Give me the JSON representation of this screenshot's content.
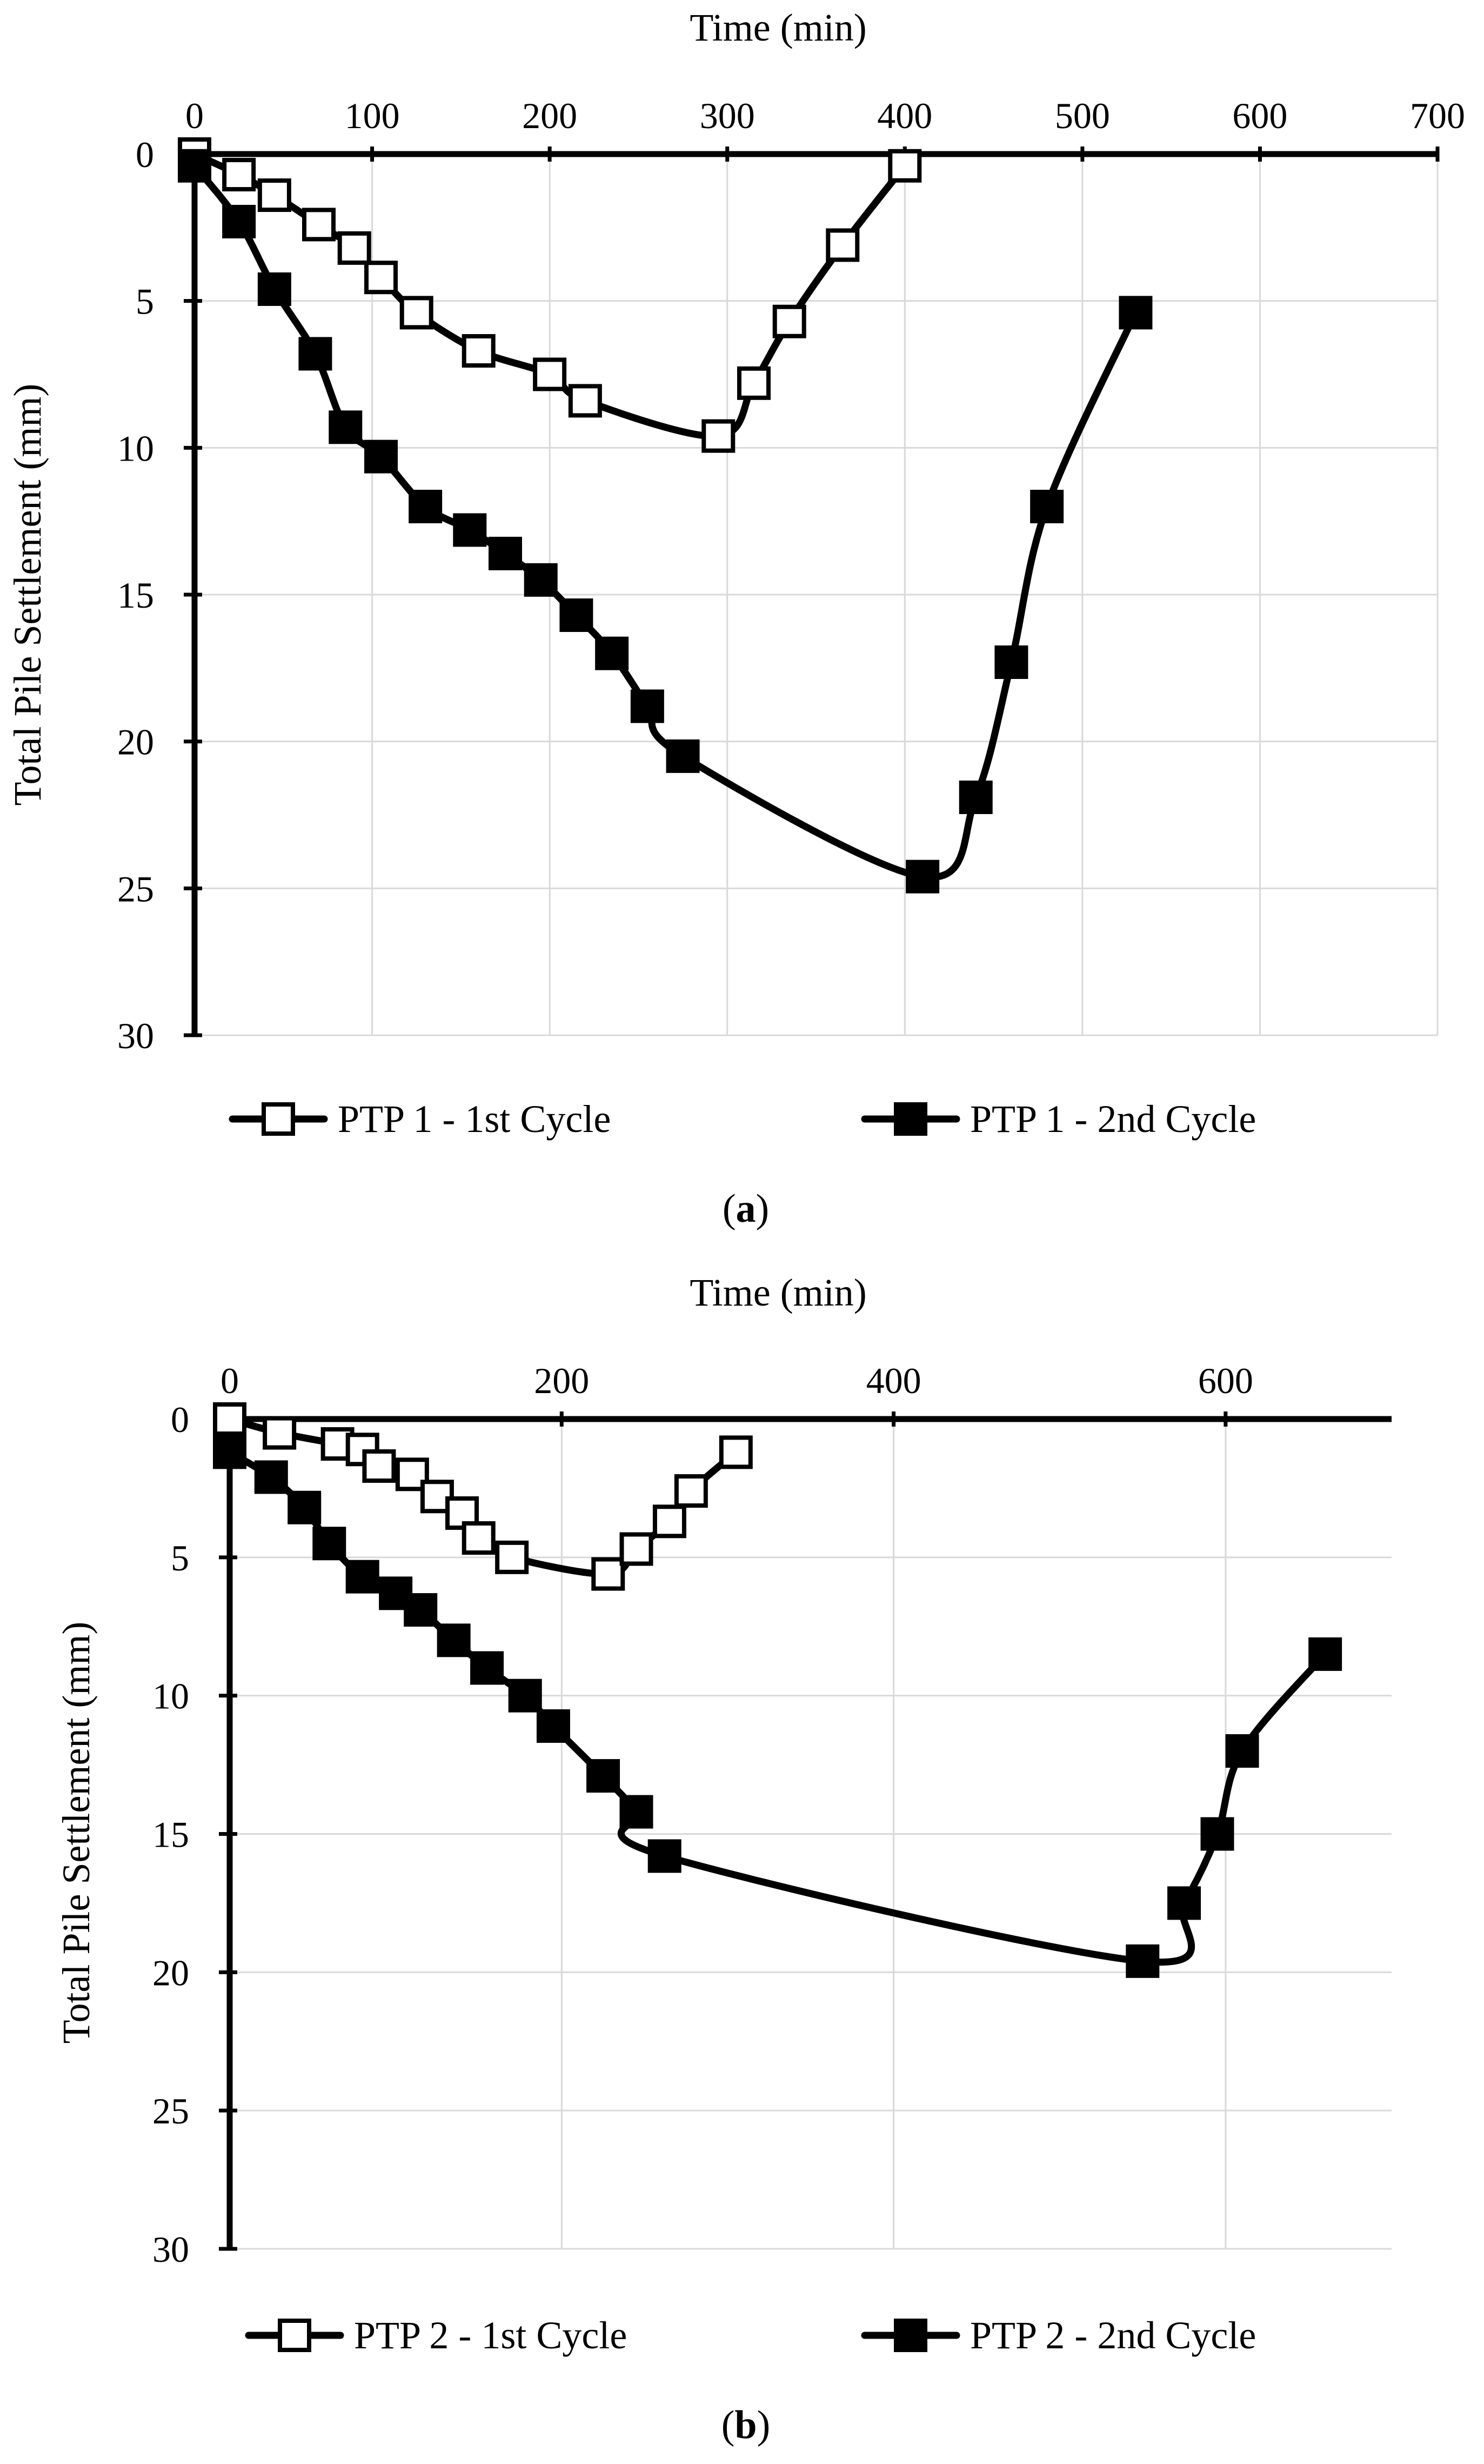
{
  "colors": {
    "ink": "#000000",
    "grid": "#d9d9d9",
    "open_fill": "#ffffff",
    "solid_fill": "#000000"
  },
  "chart_data": [
    {
      "type": "line",
      "panel_label": "(a)",
      "panel_letter": "a",
      "xlabel": "Time (min)",
      "ylabel": "Total Pile Settlement (mm)",
      "xlim": [
        0,
        700
      ],
      "ylim": [
        0,
        30
      ],
      "y_inverted": true,
      "x_axis_position": "top",
      "xticks": [
        0,
        100,
        200,
        300,
        400,
        500,
        600,
        700
      ],
      "yticks": [
        0,
        5,
        10,
        15,
        20,
        25,
        30
      ],
      "grid": true,
      "legend_position": "bottom",
      "series": [
        {
          "name": "PTP 1 - 1st Cycle",
          "marker": "open-square",
          "x": [
            0,
            25,
            45,
            70,
            90,
            105,
            125,
            160,
            200,
            220,
            295,
            315,
            335,
            365,
            400
          ],
          "y": [
            0,
            0.7,
            1.4,
            2.4,
            3.2,
            4.2,
            5.4,
            6.7,
            7.5,
            8.4,
            9.6,
            7.8,
            5.7,
            3.1,
            0.4
          ]
        },
        {
          "name": "PTP 1 - 2nd Cycle",
          "marker": "filled-square",
          "x": [
            0,
            25,
            45,
            68,
            85,
            105,
            130,
            155,
            175,
            195,
            215,
            235,
            255,
            275,
            410,
            440,
            460,
            480,
            530
          ],
          "y": [
            0.4,
            2.3,
            4.6,
            6.8,
            9.3,
            10.3,
            12.0,
            12.8,
            13.6,
            14.5,
            15.7,
            17.0,
            18.8,
            20.5,
            24.6,
            21.9,
            17.3,
            12.0,
            5.4
          ]
        }
      ]
    },
    {
      "type": "line",
      "panel_label": "(b)",
      "panel_letter": "b",
      "xlabel": "Time (min)",
      "ylabel": "Total Pile Settlement (mm)",
      "xlim": [
        0,
        700
      ],
      "ylim": [
        0,
        30
      ],
      "y_inverted": true,
      "x_axis_position": "top",
      "xticks": [
        0,
        200,
        400,
        600
      ],
      "yticks": [
        0,
        5,
        10,
        15,
        20,
        25,
        30
      ],
      "grid": true,
      "legend_position": "bottom",
      "series": [
        {
          "name": "PTP 2 - 1st Cycle",
          "marker": "open-square",
          "x": [
            0,
            30,
            65,
            80,
            90,
            110,
            125,
            140,
            150,
            170,
            228,
            245,
            265,
            278,
            305
          ],
          "y": [
            0,
            0.5,
            0.9,
            1.1,
            1.7,
            2.0,
            2.8,
            3.4,
            4.3,
            5.0,
            5.6,
            4.7,
            3.7,
            2.6,
            1.2
          ]
        },
        {
          "name": "PTP 2 - 2nd Cycle",
          "marker": "filled-square",
          "x": [
            0,
            25,
            45,
            60,
            80,
            100,
            115,
            135,
            155,
            178,
            195,
            225,
            245,
            262,
            550,
            575,
            595,
            610,
            660
          ],
          "y": [
            1.2,
            2.1,
            3.2,
            4.5,
            5.7,
            6.3,
            6.9,
            8.0,
            9.0,
            10.0,
            11.1,
            12.9,
            14.2,
            15.8,
            19.6,
            17.5,
            15.0,
            12.0,
            8.5
          ]
        }
      ]
    }
  ]
}
